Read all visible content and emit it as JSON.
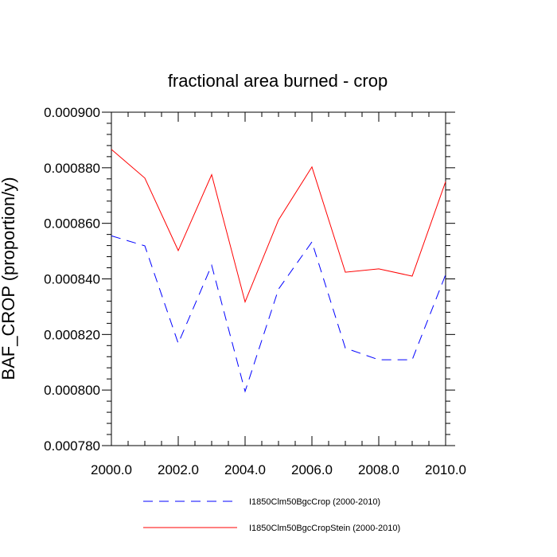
{
  "chart_data": {
    "type": "line",
    "title": "fractional area burned - crop",
    "xlabel": "",
    "ylabel": "BAF_CROP  (proportion/y)",
    "xlim": [
      2000,
      2010
    ],
    "ylim": [
      0.00078,
      0.0009
    ],
    "x_ticks": [
      2000,
      2002,
      2004,
      2006,
      2008,
      2010
    ],
    "x_tick_labels": [
      "2000.0",
      "2002.0",
      "2004.0",
      "2006.0",
      "2008.0",
      "2010.0"
    ],
    "y_ticks": [
      0.00078,
      0.0008,
      0.00082,
      0.00084,
      0.00086,
      0.00088,
      0.0009
    ],
    "y_tick_labels": [
      "0.000780",
      "0.000800",
      "0.000820",
      "0.000840",
      "0.000860",
      "0.000880",
      "0.000900"
    ],
    "grid": false,
    "legend_position": "bottom",
    "x": [
      2000,
      2001,
      2002,
      2003,
      2004,
      2005,
      2006,
      2007,
      2008,
      2009,
      2010
    ],
    "series": [
      {
        "name": "I1850Clm50BgcCrop (2000-2010)",
        "color": "#0000ff",
        "dash": "dashed",
        "values": [
          0.0008555,
          0.0008519,
          0.0008168,
          0.0008449,
          0.0007995,
          0.0008363,
          0.0008533,
          0.0008151,
          0.0008109,
          0.0008109,
          0.0008415
        ]
      },
      {
        "name": "I1850Clm50BgcCropStein (2000-2010)",
        "color": "#ff0000",
        "dash": "solid",
        "values": [
          0.0008866,
          0.0008763,
          0.0008502,
          0.0008775,
          0.0008317,
          0.0008612,
          0.0008803,
          0.0008424,
          0.0008436,
          0.000841,
          0.000875
        ]
      }
    ]
  }
}
